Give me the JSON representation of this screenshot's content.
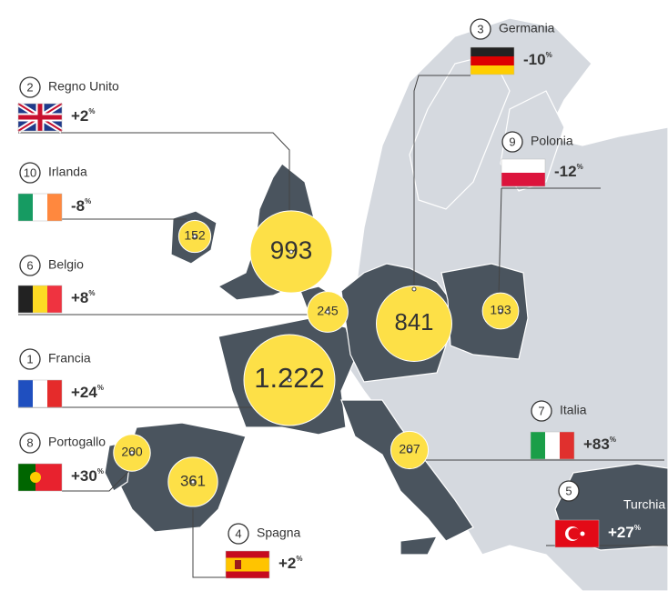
{
  "countries": [
    {
      "rank": "1",
      "name": "Francia",
      "change": "+24",
      "unit": "%",
      "value": 1222,
      "value_label": "1.222"
    },
    {
      "rank": "2",
      "name": "Regno Unito",
      "change": "+2",
      "unit": "%",
      "value": 993
    },
    {
      "rank": "3",
      "name": "Germania",
      "change": "-10",
      "unit": "%",
      "value": 841
    },
    {
      "rank": "4",
      "name": "Spagna",
      "change": "+2",
      "unit": "%",
      "value": 361
    },
    {
      "rank": "5",
      "name": "Turchia",
      "change": "+27",
      "unit": "%"
    },
    {
      "rank": "6",
      "name": "Belgio",
      "change": "+8",
      "unit": "%",
      "value": 245
    },
    {
      "rank": "7",
      "name": "Italia",
      "change": "+83",
      "unit": "%",
      "value": 207
    },
    {
      "rank": "8",
      "name": "Portogallo",
      "change": "+30",
      "unit": "%",
      "value": 200
    },
    {
      "rank": "9",
      "name": "Polonia",
      "change": "-12",
      "unit": "%",
      "value": 193
    },
    {
      "rank": "10",
      "name": "Irlanda",
      "change": "-8",
      "unit": "%",
      "value": 152
    }
  ]
}
